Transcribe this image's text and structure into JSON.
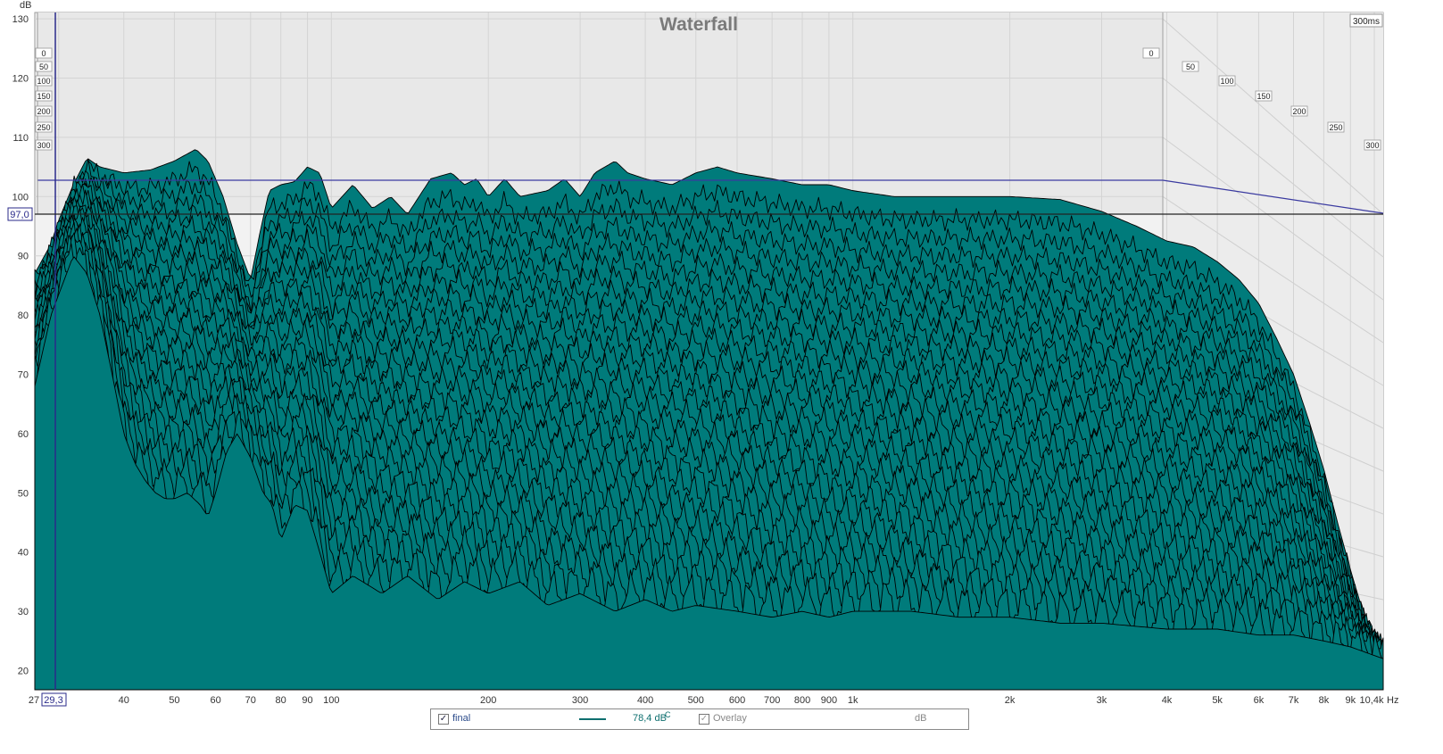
{
  "chart_data": {
    "type": "area",
    "title": "Waterfall",
    "ylabel": "dB",
    "xunit": "Hz",
    "x_scale": "log",
    "xlim": [
      27,
      10400
    ],
    "ylim": [
      16,
      131
    ],
    "grid": true,
    "time_end_label": "300ms",
    "fill_color": "#007b7b",
    "line_color": "#000000",
    "slice_count": 31,
    "y_ticks": [
      130,
      120,
      110,
      100,
      90,
      80,
      70,
      60,
      50,
      40,
      30,
      20
    ],
    "x_ticks": [
      {
        "v": 27,
        "label": "27"
      },
      {
        "v": 40,
        "label": "40"
      },
      {
        "v": 50,
        "label": "50"
      },
      {
        "v": 60,
        "label": "60"
      },
      {
        "v": 70,
        "label": "70"
      },
      {
        "v": 80,
        "label": "80"
      },
      {
        "v": 90,
        "label": "90"
      },
      {
        "v": 100,
        "label": "100"
      },
      {
        "v": 200,
        "label": "200"
      },
      {
        "v": 300,
        "label": "300"
      },
      {
        "v": 400,
        "label": "400"
      },
      {
        "v": 500,
        "label": "500"
      },
      {
        "v": 600,
        "label": "600"
      },
      {
        "v": 700,
        "label": "700"
      },
      {
        "v": 800,
        "label": "800"
      },
      {
        "v": 900,
        "label": "900"
      },
      {
        "v": 1000,
        "label": "1k"
      },
      {
        "v": 2000,
        "label": "2k"
      },
      {
        "v": 3000,
        "label": "3k"
      },
      {
        "v": 4000,
        "label": "4k"
      },
      {
        "v": 5000,
        "label": "5k"
      },
      {
        "v": 6000,
        "label": "6k"
      },
      {
        "v": 7000,
        "label": "7k"
      },
      {
        "v": 8000,
        "label": "8k"
      },
      {
        "v": 9000,
        "label": "9k"
      },
      {
        "v": 10400,
        "label": "10,4k"
      }
    ],
    "time_ticks_left": [
      "0",
      "50",
      "100",
      "150",
      "200",
      "250",
      "300"
    ],
    "time_ticks_right": [
      "0",
      "50",
      "100",
      "150",
      "200",
      "250",
      "300"
    ],
    "cursor": {
      "x": 29.3,
      "x_label": "29,3",
      "y": 97.0,
      "y_label": "97,0"
    },
    "front_slice": {
      "name": "final",
      "points": [
        [
          27,
          68
        ],
        [
          29,
          80
        ],
        [
          32,
          90
        ],
        [
          34,
          87
        ],
        [
          36,
          80
        ],
        [
          38,
          70
        ],
        [
          40,
          60
        ],
        [
          42,
          55
        ],
        [
          44,
          52
        ],
        [
          46,
          50
        ],
        [
          48,
          49
        ],
        [
          50,
          49
        ],
        [
          53,
          50
        ],
        [
          56,
          48
        ],
        [
          58,
          46
        ],
        [
          60,
          50
        ],
        [
          63,
          57
        ],
        [
          66,
          60
        ],
        [
          70,
          56
        ],
        [
          74,
          50
        ],
        [
          77,
          48
        ],
        [
          80,
          42
        ],
        [
          85,
          48
        ],
        [
          90,
          47
        ],
        [
          95,
          40
        ],
        [
          100,
          33
        ],
        [
          110,
          36
        ],
        [
          125,
          33
        ],
        [
          140,
          36
        ],
        [
          160,
          32
        ],
        [
          180,
          35
        ],
        [
          200,
          33
        ],
        [
          230,
          35
        ],
        [
          260,
          31
        ],
        [
          300,
          33
        ],
        [
          350,
          30
        ],
        [
          400,
          32
        ],
        [
          450,
          30
        ],
        [
          500,
          31
        ],
        [
          600,
          30
        ],
        [
          700,
          29
        ],
        [
          800,
          30
        ],
        [
          900,
          29
        ],
        [
          1000,
          30
        ],
        [
          1300,
          30
        ],
        [
          1600,
          29
        ],
        [
          2000,
          29
        ],
        [
          2500,
          28
        ],
        [
          3000,
          28
        ],
        [
          4000,
          27
        ],
        [
          5000,
          27
        ],
        [
          6000,
          26
        ],
        [
          7000,
          26
        ],
        [
          8000,
          25
        ],
        [
          9000,
          24
        ],
        [
          10400,
          22
        ]
      ]
    },
    "back_slice": {
      "name": "0ms",
      "points": [
        [
          27,
          87
        ],
        [
          29,
          92
        ],
        [
          30,
          96
        ],
        [
          32,
          102
        ],
        [
          34,
          106.5
        ],
        [
          36,
          105
        ],
        [
          38,
          104.5
        ],
        [
          40,
          104
        ],
        [
          45,
          104.5
        ],
        [
          50,
          106
        ],
        [
          55,
          108
        ],
        [
          58,
          106
        ],
        [
          62,
          100
        ],
        [
          66,
          92
        ],
        [
          70,
          86
        ],
        [
          73,
          94
        ],
        [
          76,
          101
        ],
        [
          80,
          102
        ],
        [
          85,
          102.5
        ],
        [
          90,
          105
        ],
        [
          95,
          104
        ],
        [
          100,
          98
        ],
        [
          110,
          102
        ],
        [
          120,
          98
        ],
        [
          130,
          100
        ],
        [
          140,
          97
        ],
        [
          155,
          103
        ],
        [
          170,
          104
        ],
        [
          180,
          102
        ],
        [
          190,
          103
        ],
        [
          200,
          100
        ],
        [
          215,
          103
        ],
        [
          230,
          100
        ],
        [
          260,
          101
        ],
        [
          280,
          103
        ],
        [
          300,
          100
        ],
        [
          320,
          104
        ],
        [
          350,
          106
        ],
        [
          370,
          104
        ],
        [
          400,
          103
        ],
        [
          450,
          102
        ],
        [
          500,
          104
        ],
        [
          550,
          105
        ],
        [
          600,
          104
        ],
        [
          700,
          103
        ],
        [
          800,
          102
        ],
        [
          900,
          102
        ],
        [
          1000,
          101
        ],
        [
          1200,
          100
        ],
        [
          1500,
          100
        ],
        [
          2000,
          100
        ],
        [
          2500,
          99.5
        ],
        [
          3000,
          97.5
        ],
        [
          3500,
          95
        ],
        [
          4000,
          92.5
        ],
        [
          4500,
          91.5
        ],
        [
          5000,
          89
        ],
        [
          5500,
          86
        ],
        [
          6000,
          82
        ],
        [
          6500,
          76
        ],
        [
          7000,
          70
        ],
        [
          7500,
          62
        ],
        [
          8000,
          54
        ],
        [
          8500,
          45
        ],
        [
          9000,
          37
        ],
        [
          9500,
          30
        ],
        [
          10000,
          26
        ],
        [
          10400,
          24
        ]
      ]
    }
  },
  "legend": {
    "trace_checked": "✓",
    "trace_label": "final",
    "trace_value": "78,4 dB",
    "trace_weighting": "C",
    "overlay_checked": "✓",
    "overlay_label": "Overlay",
    "unit_label": "dB"
  }
}
